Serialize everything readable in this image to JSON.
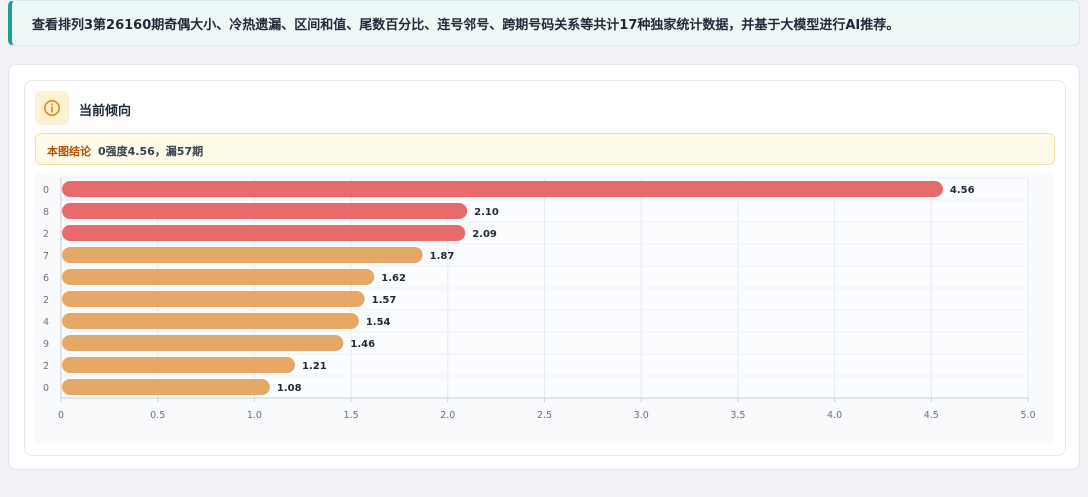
{
  "notice": {
    "text": "查看排列3第26160期奇偶大小、冷热遗漏、区间和值、尾数百分比、连号邻号、跨期号码关系等共计17种独家统计数据，并基于大模型进行AI推荐。"
  },
  "card": {
    "title": "当前倾向",
    "icon": "info-icon",
    "conclusion_label": "本图结论",
    "conclusion_text": "0强度4.56，漏57期"
  },
  "colors": {
    "hot": "#e76a6d",
    "warm": "#e6a866",
    "accent": "#16a394"
  },
  "chart_data": {
    "type": "bar",
    "orientation": "horizontal",
    "categories": [
      "0",
      "8",
      "2",
      "7",
      "6",
      "2",
      "4",
      "9",
      "2",
      "0"
    ],
    "values": [
      4.56,
      2.1,
      2.09,
      1.87,
      1.62,
      1.57,
      1.54,
      1.46,
      1.21,
      1.08
    ],
    "value_labels": [
      "4.56",
      "2.10",
      "2.09",
      "1.87",
      "1.62",
      "1.57",
      "1.54",
      "1.46",
      "1.21",
      "1.08"
    ],
    "bar_colors": [
      "#e76a6d",
      "#e76a6d",
      "#e76a6d",
      "#e6a866",
      "#e6a866",
      "#e6a866",
      "#e6a866",
      "#e6a866",
      "#e6a866",
      "#e6a866"
    ],
    "xlim": [
      0,
      5.0
    ],
    "xticks": [
      "0",
      "0.5",
      "1.0",
      "1.5",
      "2.0",
      "2.5",
      "3.0",
      "3.5",
      "4.0",
      "4.5",
      "5.0"
    ],
    "title": "",
    "xlabel": "",
    "ylabel": "",
    "grid": true
  }
}
